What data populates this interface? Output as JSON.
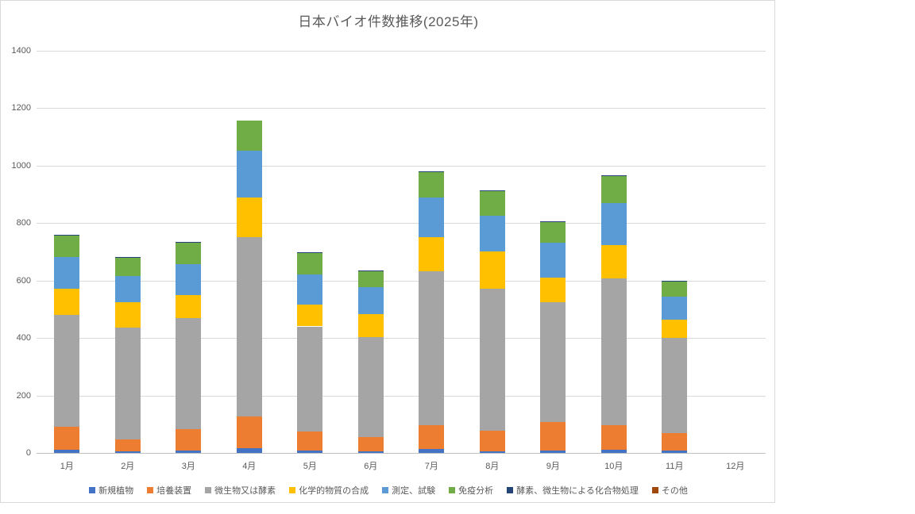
{
  "chart_data": {
    "type": "bar",
    "stacked": true,
    "title": "日本バイオ件数推移(2025年)",
    "xlabel": "",
    "ylabel": "",
    "ylim": [
      0,
      1400
    ],
    "yticks": [
      0,
      200,
      400,
      600,
      800,
      1000,
      1200,
      1400
    ],
    "grid": true,
    "legend_position": "bottom",
    "categories": [
      "1月",
      "2月",
      "3月",
      "4月",
      "5月",
      "6月",
      "7月",
      "8月",
      "9月",
      "10月",
      "11月",
      "12月"
    ],
    "series": [
      {
        "name": "新規植物",
        "color": "#4472c4",
        "values": [
          11,
          5,
          7,
          16,
          7,
          5,
          14,
          6,
          8,
          12,
          7,
          0
        ]
      },
      {
        "name": "培養装置",
        "color": "#ed7d31",
        "values": [
          79,
          43,
          76,
          111,
          67,
          50,
          83,
          72,
          100,
          85,
          62,
          0
        ]
      },
      {
        "name": "微生物又は酵素",
        "color": "#a5a5a5",
        "values": [
          389,
          389,
          386,
          622,
          366,
          349,
          536,
          492,
          416,
          511,
          331,
          0
        ]
      },
      {
        "name": "化学的物質の合成",
        "color": "#ffc000",
        "values": [
          92,
          86,
          80,
          139,
          76,
          79,
          117,
          130,
          87,
          114,
          64,
          0
        ]
      },
      {
        "name": "測定、試験",
        "color": "#5b9bd5",
        "values": [
          110,
          91,
          108,
          162,
          106,
          94,
          139,
          124,
          120,
          147,
          80,
          0
        ]
      },
      {
        "name": "免疫分析",
        "color": "#70ad47",
        "values": [
          74,
          64,
          75,
          105,
          72,
          55,
          87,
          86,
          72,
          93,
          53,
          0
        ]
      },
      {
        "name": "酵素、微生物による化合物処理",
        "color": "#264478",
        "values": [
          4,
          3,
          3,
          0,
          4,
          3,
          4,
          4,
          3,
          3,
          3,
          0
        ]
      },
      {
        "name": "その他",
        "color": "#9e480e",
        "values": [
          0,
          0,
          0,
          0,
          0,
          0,
          0,
          0,
          0,
          0,
          0,
          0
        ]
      }
    ]
  }
}
